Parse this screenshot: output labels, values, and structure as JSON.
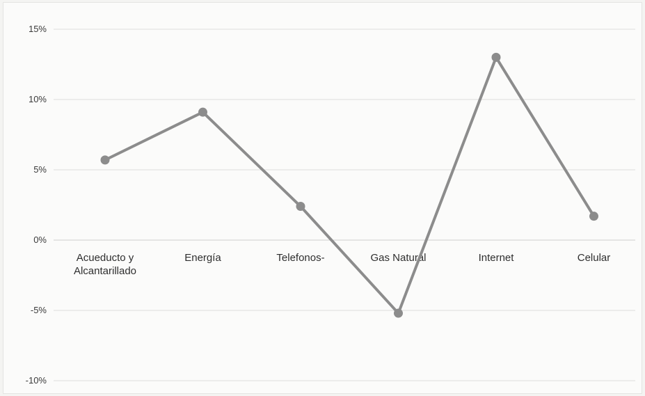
{
  "chart_data": {
    "type": "line",
    "title": "",
    "xlabel": "",
    "ylabel": "",
    "categories": [
      "Acueducto y Alcantarillado",
      "Energía",
      "Telefonos-",
      "Gas Natural",
      "Internet",
      "Celular"
    ],
    "category_lines": [
      [
        "Acueducto y",
        "Alcantarillado"
      ],
      [
        "Energía"
      ],
      [
        "Telefonos-"
      ],
      [
        "Gas Natural"
      ],
      [
        "Internet"
      ],
      [
        "Celular"
      ]
    ],
    "series": [
      {
        "values": [
          5.7,
          9.1,
          2.4,
          -5.2,
          13.0,
          1.7
        ]
      }
    ],
    "ylim": [
      -10,
      15
    ],
    "yticks": [
      15,
      10,
      5,
      0,
      -5,
      -10
    ],
    "ytick_labels": [
      "15%",
      "10%",
      "5%",
      "0%",
      "-5%",
      "-10%"
    ],
    "grid": true,
    "legend": "none",
    "colors": {
      "line": "#8c8c8c",
      "marker": "#8c8c8c",
      "grid": "#dcdcdc",
      "text": "#333333"
    }
  }
}
